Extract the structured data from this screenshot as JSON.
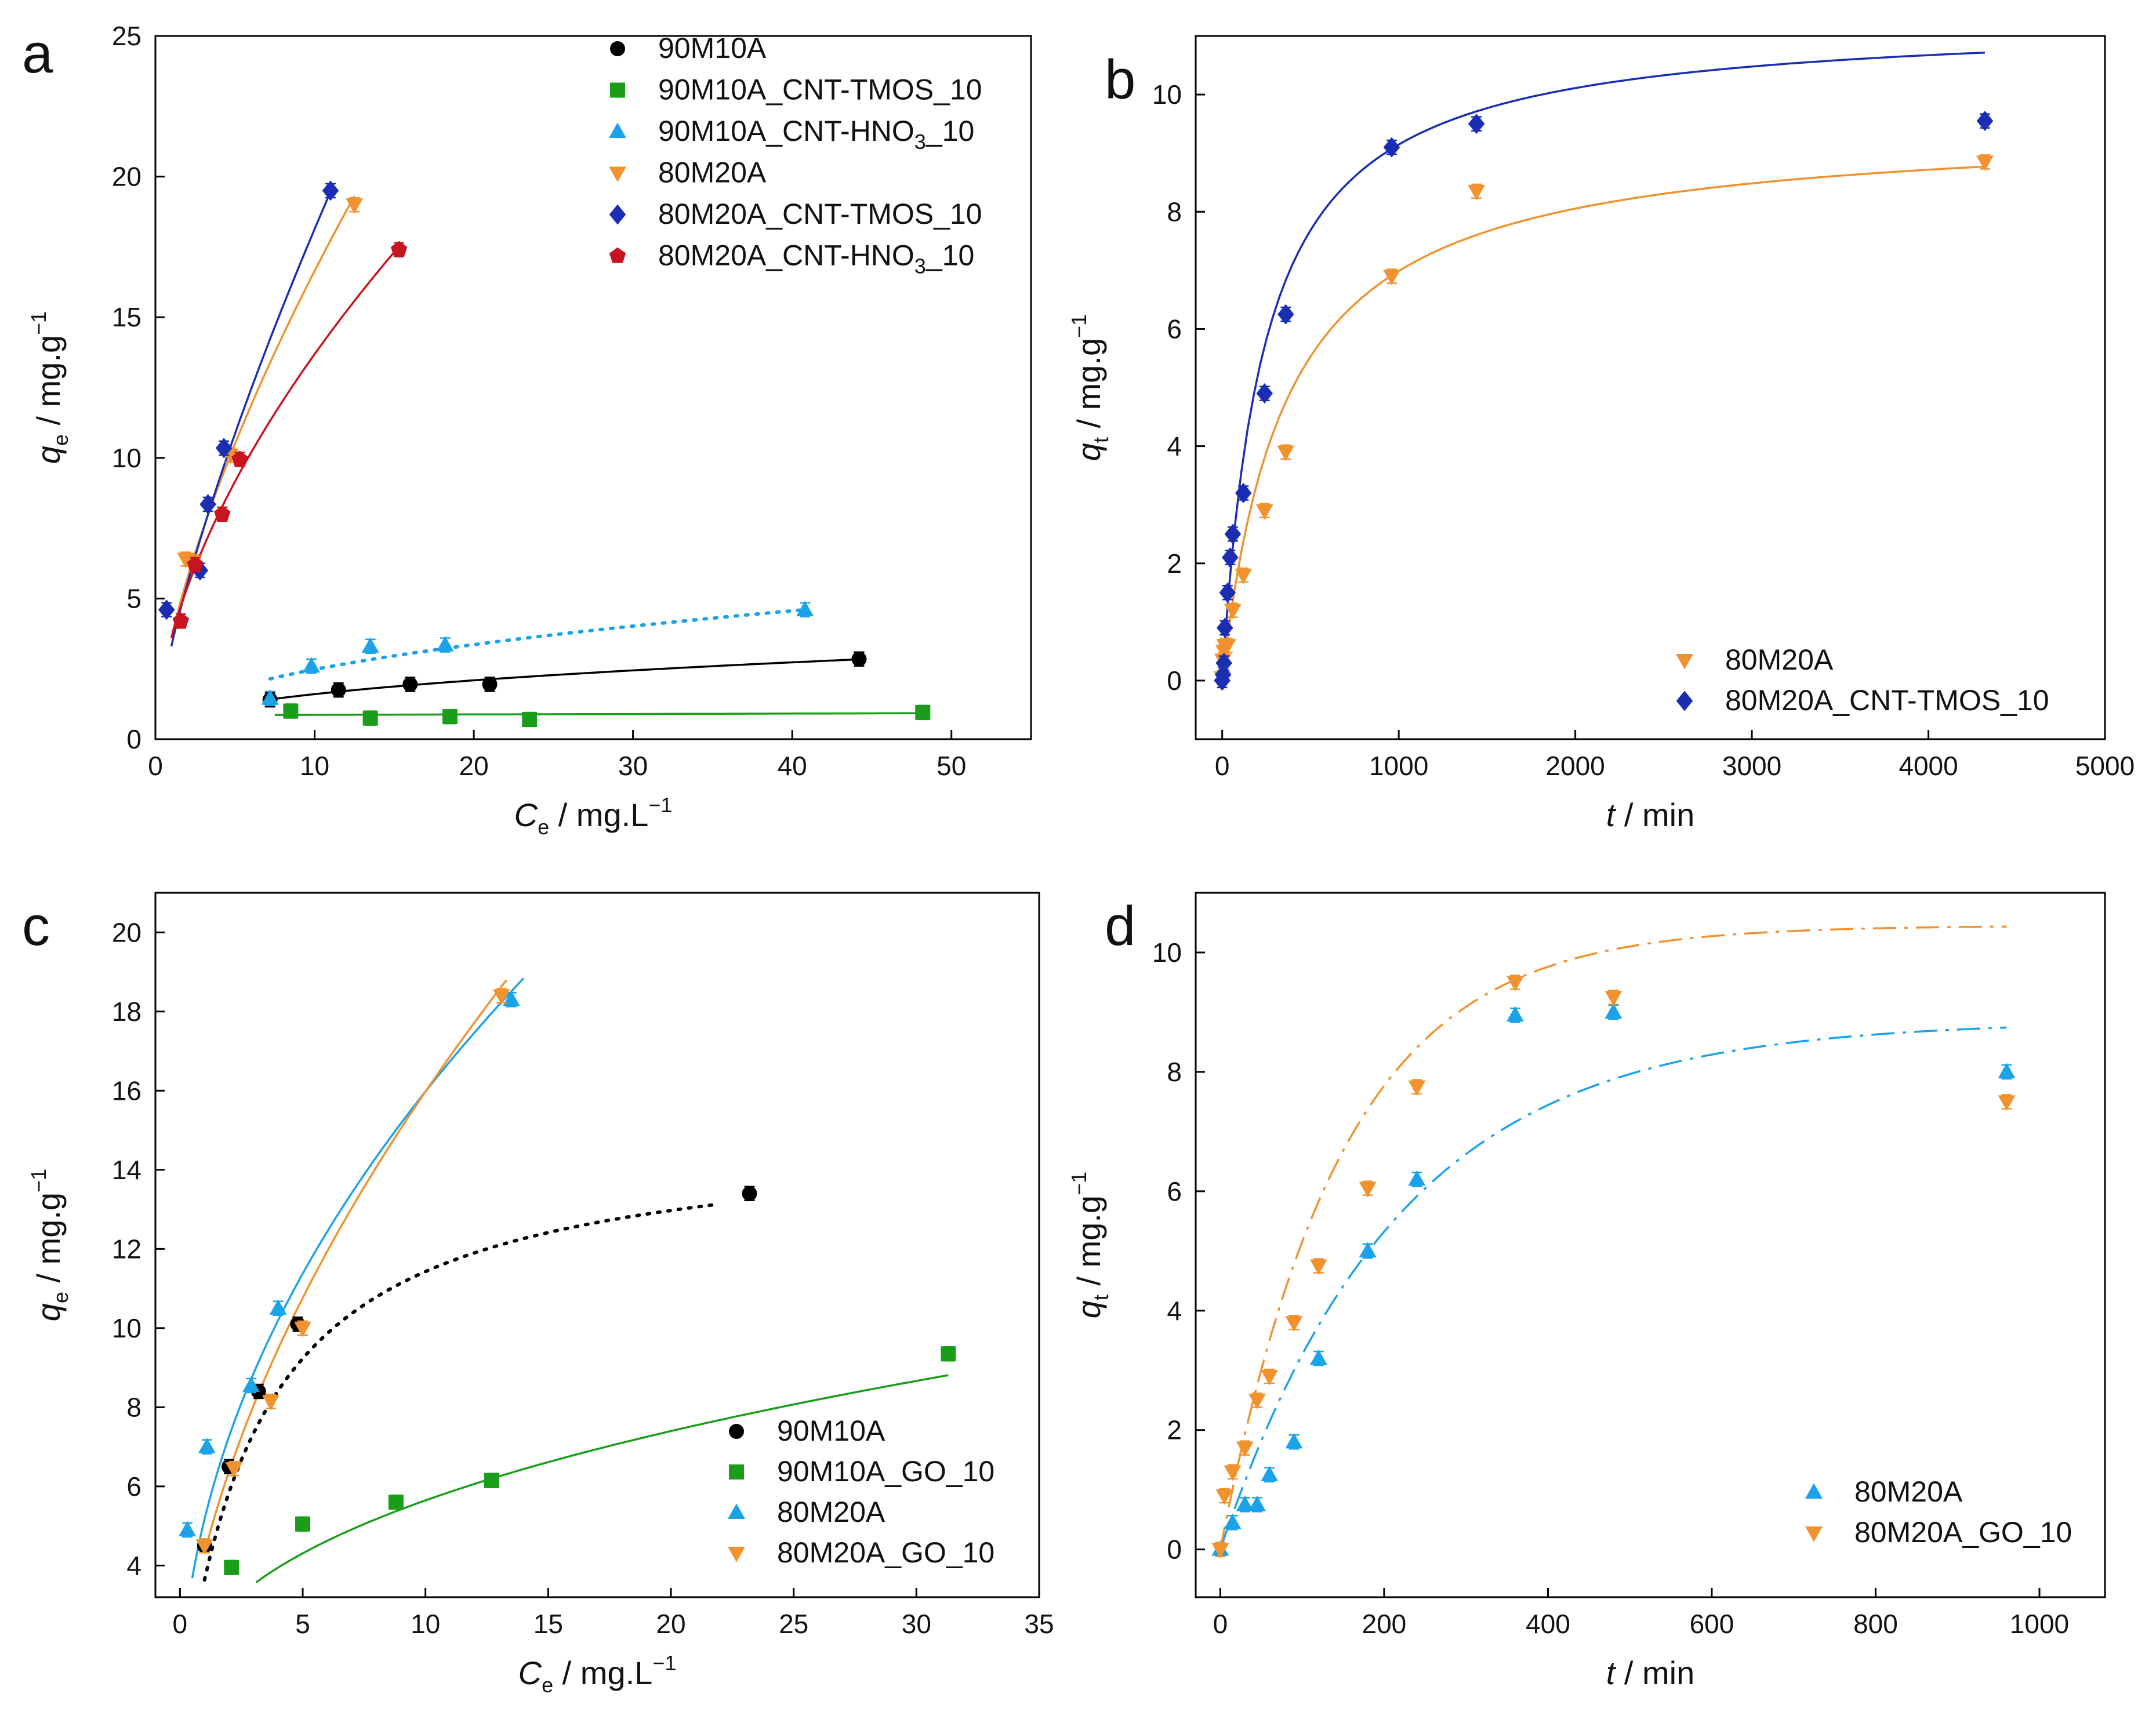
{
  "chart_data": [
    {
      "panel": "a",
      "type": "scatter",
      "xlabel": "C",
      "xlabel_sub": "e",
      "xlabel_unit": " / mg.L",
      "ylabel": "q",
      "ylabel_sub": "e",
      "ylabel_unit": " / mg.g",
      "unit_sup": "−1",
      "xlim": [
        0,
        55
      ],
      "ylim": [
        0,
        25
      ],
      "xticks": [
        0,
        10,
        20,
        30,
        40,
        50
      ],
      "yticks": [
        0,
        5,
        10,
        15,
        20,
        25
      ],
      "legend_position": "top-right",
      "series": [
        {
          "name": "90M10A",
          "color": "#000000",
          "marker": "circle",
          "x": [
            7.2,
            11.5,
            16.0,
            21.0,
            44.2
          ],
          "y": [
            1.4,
            1.75,
            1.95,
            1.95,
            2.85
          ],
          "fit": {
            "type": "freundlich",
            "K": 0.66,
            "n": 0.385,
            "x0": 7.2,
            "x1": 44.2,
            "dash": "solid"
          }
        },
        {
          "name": "90M10A_CNT-TMOS_10",
          "color": "#1a9e1a",
          "marker": "square",
          "x": [
            8.5,
            13.5,
            18.5,
            23.5,
            48.2
          ],
          "y": [
            1.0,
            0.75,
            0.8,
            0.7,
            0.95
          ],
          "fit": {
            "type": "line",
            "a": 0.85,
            "b": 0.0015,
            "x0": 7.5,
            "x1": 48.2,
            "dash": "solid"
          }
        },
        {
          "name": "90M10A_CNT-HNO_3_10",
          "color": "#1aa3e8",
          "marker": "triangle-up",
          "x": [
            7.2,
            9.8,
            13.5,
            18.2,
            40.8
          ],
          "y": [
            1.45,
            2.6,
            3.3,
            3.35,
            4.6
          ],
          "fit": {
            "type": "freundlich",
            "K": 0.9,
            "n": 0.44,
            "x0": 7.2,
            "x1": 40.8,
            "dash": "dotted"
          }
        },
        {
          "name": "80M20A",
          "color": "#f0922e",
          "marker": "triangle-down",
          "x": [
            1.9,
            2.4,
            4.7,
            12.5
          ],
          "y": [
            6.4,
            6.3,
            10.1,
            19.0
          ],
          "fit": {
            "type": "freundlich",
            "K": 3.6,
            "n": 0.665,
            "x0": 1.0,
            "x1": 12.5,
            "dash": "solid"
          }
        },
        {
          "name": "80M20A_CNT-TMOS_10",
          "color": "#1a2db3",
          "marker": "diamond",
          "x": [
            0.7,
            2.8,
            3.3,
            4.3,
            11.0
          ],
          "y": [
            4.6,
            6.0,
            8.35,
            10.35,
            19.5
          ],
          "fit": {
            "type": "freundlich",
            "K": 3.3,
            "n": 0.74,
            "x0": 1.0,
            "x1": 11.0,
            "dash": "solid"
          }
        },
        {
          "name": "80M20A_CNT-HNO_3_10",
          "color": "#c8141e",
          "marker": "pentagon",
          "x": [
            1.6,
            2.5,
            4.2,
            5.3,
            15.3
          ],
          "y": [
            4.2,
            6.2,
            8.0,
            9.95,
            17.4
          ],
          "fit": {
            "type": "freundlich",
            "K": 3.6,
            "n": 0.58,
            "x0": 1.0,
            "x1": 15.3,
            "dash": "solid"
          }
        }
      ]
    },
    {
      "panel": "b",
      "type": "scatter",
      "xlabel": "t",
      "xlabel_sub": "",
      "xlabel_unit": " / min",
      "ylabel": "q",
      "ylabel_sub": "t",
      "ylabel_unit": " / mg.g",
      "unit_sup": "−1",
      "xlim": [
        -150,
        5000
      ],
      "ylim": [
        -1,
        11
      ],
      "xticks": [
        0,
        1000,
        2000,
        3000,
        4000,
        5000
      ],
      "yticks": [
        0,
        2,
        4,
        6,
        8,
        10
      ],
      "legend_position": "bottom-right",
      "series": [
        {
          "name": "80M20A",
          "color": "#f0922e",
          "marker": "triangle-down",
          "x": [
            0,
            5,
            10,
            15,
            30,
            60,
            120,
            240,
            360,
            960,
            1440,
            4320
          ],
          "y": [
            0.05,
            0.35,
            0.5,
            0.6,
            0.6,
            1.2,
            1.8,
            2.9,
            3.9,
            6.9,
            8.35,
            8.85
          ],
          "fit": {
            "type": "pso",
            "qe": 9.5,
            "k": 0.000293,
            "x0": 0,
            "x1": 4320,
            "dash": "solid"
          }
        },
        {
          "name": "80M20A_CNT-TMOS_10",
          "color": "#1a2db3",
          "marker": "diamond",
          "x": [
            0,
            5,
            10,
            15,
            30,
            45,
            60,
            120,
            240,
            360,
            960,
            1440,
            4320
          ],
          "y": [
            0.0,
            0.1,
            0.3,
            0.9,
            1.5,
            2.1,
            2.5,
            3.2,
            4.9,
            6.25,
            9.1,
            9.5,
            9.55
          ],
          "fit": {
            "type": "pso",
            "qe": 11.3,
            "k": 0.000376,
            "x0": 0,
            "x1": 4320,
            "dash": "solid"
          }
        }
      ]
    },
    {
      "panel": "c",
      "type": "scatter",
      "xlabel": "C",
      "xlabel_sub": "e",
      "xlabel_unit": " / mg.L",
      "ylabel": "q",
      "ylabel_sub": "e",
      "ylabel_unit": " / mg.g",
      "unit_sup": "−1",
      "xlim": [
        -1,
        35
      ],
      "ylim": [
        3.2,
        21
      ],
      "xticks": [
        0,
        5,
        10,
        15,
        20,
        25,
        30,
        35
      ],
      "yticks": [
        4,
        6,
        8,
        10,
        12,
        14,
        16,
        18,
        20
      ],
      "legend_position": "bottom-right",
      "series": [
        {
          "name": "90M10A",
          "color": "#000000",
          "marker": "circle",
          "x": [
            1.0,
            2.0,
            3.2,
            4.8,
            23.2
          ],
          "y": [
            4.5,
            6.5,
            8.4,
            10.1,
            13.4
          ],
          "fit": {
            "type": "langmuir",
            "qm": 15.0,
            "KL": 0.32,
            "x0": 1.0,
            "x1": 21.8,
            "dash": "dotted"
          }
        },
        {
          "name": "90M10A_GO_10",
          "color": "#1a9e1a",
          "marker": "square",
          "x": [
            2.1,
            5.0,
            8.8,
            12.7,
            31.3
          ],
          "y": [
            3.95,
            5.05,
            5.6,
            6.15,
            9.35
          ],
          "fit": {
            "type": "freundlich",
            "K": 2.3,
            "n": 0.39,
            "x0": 3.1,
            "x1": 31.3,
            "dash": "solid"
          }
        },
        {
          "name": "80M20A",
          "color": "#1aa3e8",
          "marker": "triangle-up",
          "x": [
            0.3,
            1.1,
            2.9,
            4.0,
            13.5
          ],
          "y": [
            4.9,
            7.0,
            8.55,
            10.5,
            18.3
          ],
          "fit": {
            "type": "freundlich",
            "K": 5.17,
            "n": 0.49,
            "x0": 0.5,
            "x1": 14.0,
            "dash": "solid"
          }
        },
        {
          "name": "80M20A_GO_10",
          "color": "#f0922e",
          "marker": "triangle-down",
          "x": [
            1.0,
            2.2,
            3.7,
            5.0,
            13.1
          ],
          "y": [
            4.5,
            6.45,
            8.15,
            10.0,
            18.4
          ],
          "fit": {
            "type": "freundlich",
            "K": 4.3,
            "n": 0.57,
            "x0": 1.0,
            "x1": 13.3,
            "dash": "solid"
          }
        }
      ]
    },
    {
      "panel": "d",
      "type": "scatter",
      "xlabel": "t",
      "xlabel_sub": "",
      "xlabel_unit": " / min",
      "ylabel": "q",
      "ylabel_sub": "t",
      "ylabel_unit": " / mg.g",
      "unit_sup": "−1",
      "xlim": [
        -30,
        1080
      ],
      "ylim": [
        -0.8,
        11
      ],
      "xticks": [
        0,
        200,
        400,
        600,
        800,
        1000
      ],
      "yticks": [
        0,
        2,
        4,
        6,
        8,
        10
      ],
      "legend_position": "bottom-right",
      "series": [
        {
          "name": "80M20A",
          "color": "#1aa3e8",
          "marker": "triangle-up",
          "x": [
            0,
            15,
            30,
            45,
            60,
            90,
            120,
            180,
            240,
            360,
            480,
            960
          ],
          "y": [
            0.0,
            0.45,
            0.75,
            0.75,
            1.25,
            1.8,
            3.2,
            5.0,
            6.2,
            8.95,
            9.0,
            8.0
          ],
          "fit": {
            "type": "exp",
            "qe": 8.85,
            "k": 0.0046,
            "x0": 0,
            "x1": 960,
            "dash": "dashdot"
          }
        },
        {
          "name": "80M20A_GO_10",
          "color": "#f0922e",
          "marker": "triangle-down",
          "x": [
            0,
            5,
            15,
            30,
            45,
            60,
            90,
            120,
            180,
            240,
            360,
            480,
            960
          ],
          "y": [
            0.0,
            0.9,
            1.3,
            1.7,
            2.5,
            2.9,
            3.8,
            4.75,
            6.05,
            7.75,
            9.5,
            9.25,
            7.5
          ],
          "fit": {
            "type": "exp",
            "qe": 10.45,
            "k": 0.0068,
            "x0": 0,
            "x1": 960,
            "dash": "dashdot"
          }
        }
      ]
    }
  ],
  "legend_labels": {
    "a": [
      {
        "main": "90M10A"
      },
      {
        "main": "90M10A_CNT-TMOS_10"
      },
      {
        "main": "90M10A_CNT-HNO",
        "sub": "3",
        "tail": "_10"
      },
      {
        "main": "80M20A"
      },
      {
        "main": "80M20A_CNT-TMOS_10"
      },
      {
        "main": "80M20A_CNT-HNO",
        "sub": "3",
        "tail": "_10"
      }
    ]
  }
}
